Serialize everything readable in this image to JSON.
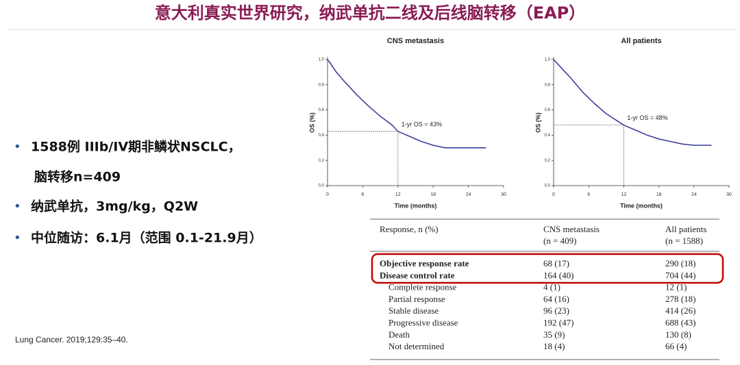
{
  "header": {
    "title": "意大利真实世界研究，纳武单抗二线及后线脑转移（EAP）"
  },
  "bullets": [
    [
      "1588例 IIIb/IV期非鳞状NSCLC，",
      "脑转移n=409"
    ],
    [
      "纳武单抗，3mg/kg，Q2W"
    ],
    [
      "中位随访：6.1月（范围 0.1-21.9月）"
    ]
  ],
  "citation": "Lung Cancer. 2019;129:35–40.",
  "chart_data": [
    {
      "type": "line",
      "title": "CNS metastasis",
      "x_label": "Time (months)",
      "y_label": "OS (%)",
      "xlim": [
        0,
        30
      ],
      "ylim": [
        0,
        1.0
      ],
      "xticks": [
        0,
        6,
        12,
        18,
        24,
        30
      ],
      "yticks": [
        {
          "value": 0,
          "label": "0,0"
        },
        {
          "value": 0.2,
          "label": "0,2"
        },
        {
          "value": 0.4,
          "label": "0,4"
        },
        {
          "value": 0.6,
          "label": "0,6"
        },
        {
          "value": 0.8,
          "label": "0,8"
        },
        {
          "value": 1.0,
          "label": "1,0"
        }
      ],
      "annotation": {
        "text": "1-yr OS = 43%",
        "x": 12,
        "y": 0.43
      },
      "series": [
        {
          "color": "#3b3f9a",
          "x": [
            0,
            0.5,
            1.5,
            3,
            5,
            7,
            9,
            11,
            12,
            14,
            16,
            18,
            20,
            27
          ],
          "values": [
            1.0,
            0.97,
            0.9,
            0.82,
            0.72,
            0.63,
            0.55,
            0.48,
            0.43,
            0.39,
            0.35,
            0.32,
            0.3,
            0.3
          ]
        }
      ]
    },
    {
      "type": "line",
      "title": "All patients",
      "x_label": "Time (months)",
      "y_label": "OS (%)",
      "xlim": [
        0,
        30
      ],
      "ylim": [
        0,
        1.0
      ],
      "xticks": [
        0,
        6,
        12,
        18,
        24,
        30
      ],
      "yticks": [
        {
          "value": 0,
          "label": "0,0"
        },
        {
          "value": 0.2,
          "label": "0,2"
        },
        {
          "value": 0.4,
          "label": "0,4"
        },
        {
          "value": 0.6,
          "label": "0,6"
        },
        {
          "value": 0.8,
          "label": "0,8"
        },
        {
          "value": 1.0,
          "label": "1,0"
        }
      ],
      "annotation": {
        "text": "1-yr OS = 48%",
        "x": 12,
        "y": 0.48
      },
      "series": [
        {
          "color": "#3b3f9a",
          "x": [
            0,
            1,
            3,
            5,
            7,
            9,
            11,
            12,
            14,
            16,
            18,
            20,
            22,
            24,
            27
          ],
          "values": [
            1.0,
            0.95,
            0.85,
            0.74,
            0.65,
            0.57,
            0.51,
            0.48,
            0.44,
            0.4,
            0.37,
            0.35,
            0.33,
            0.32,
            0.32
          ]
        }
      ]
    }
  ],
  "table": {
    "columns": [
      [
        "Response, n (%)"
      ],
      [
        "CNS metastasis",
        "(n = 409)"
      ],
      [
        "All patients",
        "(n = 1588)"
      ]
    ],
    "rows": [
      [
        "Objective response rate",
        "68 (17)",
        "290 (18)"
      ],
      [
        "Disease control rate",
        "164 (40)",
        "704 (44)"
      ],
      [
        "Complete response",
        "4 (1)",
        "12 (1)"
      ],
      [
        "Partial response",
        "64 (16)",
        "278 (18)"
      ],
      [
        "Stable disease",
        "96 (23)",
        "414 (26)"
      ],
      [
        "Progressive disease",
        "192 (47)",
        "688 (43)"
      ],
      [
        "Death",
        "35 (9)",
        "130 (8)"
      ],
      [
        "Not determined",
        "18 (4)",
        "66 (4)"
      ]
    ]
  }
}
